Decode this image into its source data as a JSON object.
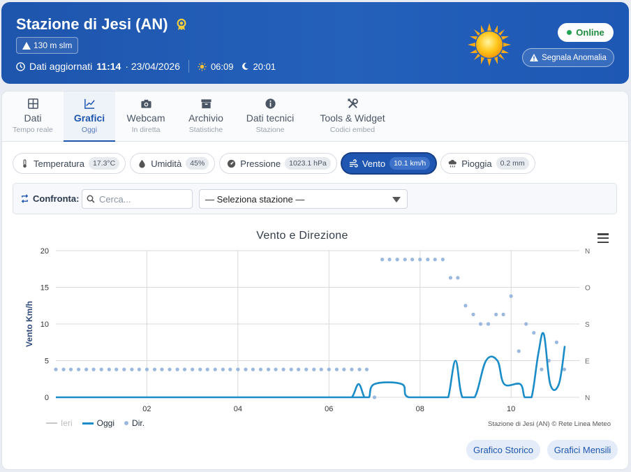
{
  "header": {
    "title": "Stazione di Jesi (AN)",
    "altitude": "130 m slm",
    "updated_label": "Dati aggiornati",
    "updated_time": "11:14",
    "updated_date": "· 23/04/2026",
    "sunrise": "06:09",
    "sunset": "20:01",
    "status": "Online",
    "report_button": "Segnala Anomalia",
    "colors": {
      "brand": "#1f56b1",
      "online": "#23a455"
    }
  },
  "tabs": [
    {
      "label": "Dati",
      "sub": "Tempo reale",
      "icon": "grid-icon"
    },
    {
      "label": "Grafici",
      "sub": "Oggi",
      "icon": "chart-line-icon",
      "active": true
    },
    {
      "label": "Webcam",
      "sub": "In diretta",
      "icon": "camera-icon"
    },
    {
      "label": "Archivio",
      "sub": "Statistiche",
      "icon": "archive-icon"
    },
    {
      "label": "Dati tecnici",
      "sub": "Stazione",
      "icon": "info-icon"
    },
    {
      "label": "Tools & Widget",
      "sub": "Codici embed",
      "icon": "tools-icon"
    }
  ],
  "metrics": [
    {
      "label": "Temperatura",
      "value": "17.3°C",
      "icon": "thermometer-icon"
    },
    {
      "label": "Umidità",
      "value": "45%",
      "icon": "droplet-icon"
    },
    {
      "label": "Pressione",
      "value": "1023.1 hPa",
      "icon": "gauge-icon"
    },
    {
      "label": "Vento",
      "value": "10.1 km/h",
      "icon": "wind-icon",
      "active": true
    },
    {
      "label": "Pioggia",
      "value": "0.2 mm",
      "icon": "rain-cloud-icon"
    }
  ],
  "compare": {
    "label": "Confronta:",
    "search_placeholder": "Cerca...",
    "select_value": "— Seleziona stazione —"
  },
  "chart_data": {
    "type": "line",
    "title": "Vento e Direzione",
    "ylabel": "Vento Km/h",
    "ylim": [
      0,
      20
    ],
    "yticks": [
      "0",
      "5",
      "10",
      "15",
      "20"
    ],
    "y2ticks": [
      "N",
      "E",
      "S",
      "O",
      "N"
    ],
    "xlim": [
      0.0,
      11.5
    ],
    "xticks": [
      "02",
      "04",
      "06",
      "08",
      "10"
    ],
    "grid": true,
    "legend_placement": "bottom-left",
    "series": [
      {
        "name": "Ieri",
        "color": "#c8c8c8",
        "points": []
      },
      {
        "name": "Oggi",
        "color": "#1a8cc7",
        "points": [
          [
            0,
            0
          ],
          [
            6.3,
            0
          ],
          [
            6.5,
            0
          ],
          [
            6.65,
            1.8
          ],
          [
            6.78,
            0
          ],
          [
            6.88,
            0
          ],
          [
            7.0,
            1.8
          ],
          [
            7.6,
            1.8
          ],
          [
            7.75,
            0
          ],
          [
            8.5,
            0
          ],
          [
            8.62,
            0
          ],
          [
            8.78,
            5.0
          ],
          [
            8.93,
            0
          ],
          [
            9.2,
            0
          ],
          [
            9.45,
            5.0
          ],
          [
            9.7,
            5.0
          ],
          [
            9.85,
            1.8
          ],
          [
            10.2,
            1.8
          ],
          [
            10.3,
            0
          ],
          [
            10.45,
            0
          ],
          [
            10.6,
            6.0
          ],
          [
            10.72,
            8.6
          ],
          [
            10.86,
            1.8
          ],
          [
            11.05,
            1.8
          ],
          [
            11.18,
            7.0
          ]
        ]
      },
      {
        "name": "Dir.",
        "color": "#9bb8de",
        "type": "scatter",
        "points": [
          [
            0.0,
            3.8
          ],
          [
            0.17,
            3.8
          ],
          [
            0.33,
            3.8
          ],
          [
            0.5,
            3.8
          ],
          [
            0.67,
            3.8
          ],
          [
            0.83,
            3.8
          ],
          [
            1.0,
            3.8
          ],
          [
            1.17,
            3.8
          ],
          [
            1.33,
            3.8
          ],
          [
            1.5,
            3.8
          ],
          [
            1.67,
            3.8
          ],
          [
            1.83,
            3.8
          ],
          [
            2.0,
            3.8
          ],
          [
            2.17,
            3.8
          ],
          [
            2.33,
            3.8
          ],
          [
            2.5,
            3.8
          ],
          [
            2.67,
            3.8
          ],
          [
            2.83,
            3.8
          ],
          [
            3.0,
            3.8
          ],
          [
            3.17,
            3.8
          ],
          [
            3.33,
            3.8
          ],
          [
            3.5,
            3.8
          ],
          [
            3.67,
            3.8
          ],
          [
            3.83,
            3.8
          ],
          [
            4.0,
            3.8
          ],
          [
            4.17,
            3.8
          ],
          [
            4.33,
            3.8
          ],
          [
            4.5,
            3.8
          ],
          [
            4.67,
            3.8
          ],
          [
            4.83,
            3.8
          ],
          [
            5.0,
            3.8
          ],
          [
            5.17,
            3.8
          ],
          [
            5.33,
            3.8
          ],
          [
            5.5,
            3.8
          ],
          [
            5.67,
            3.8
          ],
          [
            5.83,
            3.8
          ],
          [
            6.0,
            3.8
          ],
          [
            6.17,
            3.8
          ],
          [
            6.33,
            3.8
          ],
          [
            6.5,
            3.8
          ],
          [
            6.67,
            3.8
          ],
          [
            6.83,
            3.8
          ],
          [
            7.0,
            0
          ],
          [
            7.17,
            18.8
          ],
          [
            7.33,
            18.8
          ],
          [
            7.5,
            18.8
          ],
          [
            7.67,
            18.8
          ],
          [
            7.83,
            18.8
          ],
          [
            8.0,
            18.8
          ],
          [
            8.17,
            18.8
          ],
          [
            8.33,
            18.8
          ],
          [
            8.5,
            18.8
          ],
          [
            8.67,
            16.3
          ],
          [
            8.83,
            16.3
          ],
          [
            9.0,
            12.5
          ],
          [
            9.17,
            11.3
          ],
          [
            9.33,
            10.0
          ],
          [
            9.5,
            10.0
          ],
          [
            9.67,
            11.3
          ],
          [
            9.83,
            11.3
          ],
          [
            10.0,
            13.8
          ],
          [
            10.17,
            6.3
          ],
          [
            10.33,
            10.0
          ],
          [
            10.5,
            8.8
          ],
          [
            10.67,
            3.8
          ],
          [
            10.83,
            5.0
          ],
          [
            11.0,
            7.5
          ],
          [
            11.17,
            3.8
          ]
        ]
      }
    ],
    "credits": "Stazione di Jesi (AN) © Rete Linea Meteo"
  },
  "footer_buttons": [
    "Grafico Storico",
    "Grafici Mensili"
  ]
}
